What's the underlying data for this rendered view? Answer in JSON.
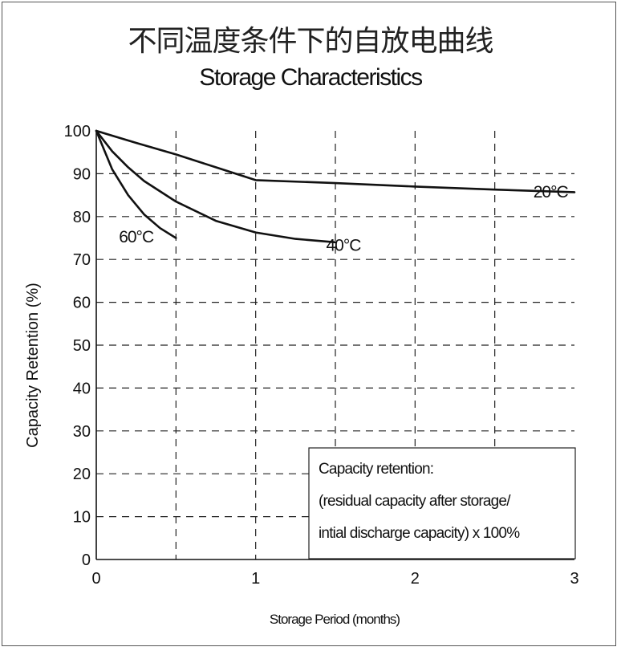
{
  "chart_data": {
    "type": "line",
    "title_cn": "不同温度条件下的自放电曲线",
    "title": "Storage Characteristics",
    "xlabel": "Storage Period (months)",
    "ylabel": "Capacity Retention (%)",
    "xlim": [
      0,
      3
    ],
    "ylim": [
      0,
      100
    ],
    "xticks": [
      "0",
      "1",
      "2",
      "3"
    ],
    "yticks": [
      "0",
      "10",
      "20",
      "30",
      "40",
      "50",
      "60",
      "70",
      "80",
      "90",
      "100"
    ],
    "grid": true,
    "series": [
      {
        "name": "20°C",
        "x": [
          0,
          0.25,
          0.5,
          0.75,
          1.0,
          1.5,
          2.0,
          2.5,
          3.0
        ],
        "y": [
          100,
          97.2,
          94.5,
          91.5,
          88.5,
          87.8,
          87.0,
          86.3,
          85.7
        ]
      },
      {
        "name": "40°C",
        "x": [
          0,
          0.1,
          0.2,
          0.3,
          0.5,
          0.75,
          1.0,
          1.25,
          1.5
        ],
        "y": [
          100,
          95.2,
          91.5,
          88.3,
          83.5,
          79.0,
          76.3,
          74.8,
          74.0
        ]
      },
      {
        "name": "60°C",
        "x": [
          0,
          0.05,
          0.1,
          0.2,
          0.3,
          0.4,
          0.5
        ],
        "y": [
          100,
          95.5,
          91.0,
          85.0,
          80.5,
          77.3,
          75.0
        ]
      }
    ],
    "series_label_positions": [
      {
        "x": 2.85,
        "y": 84.5
      },
      {
        "x": 1.55,
        "y": 72.0
      },
      {
        "x": 0.25,
        "y": 74.0
      }
    ],
    "note": {
      "line1": "Capacity retention:",
      "line2": "(residual capacity after storage/",
      "line3": "intial discharge capacity) x 100%"
    }
  }
}
